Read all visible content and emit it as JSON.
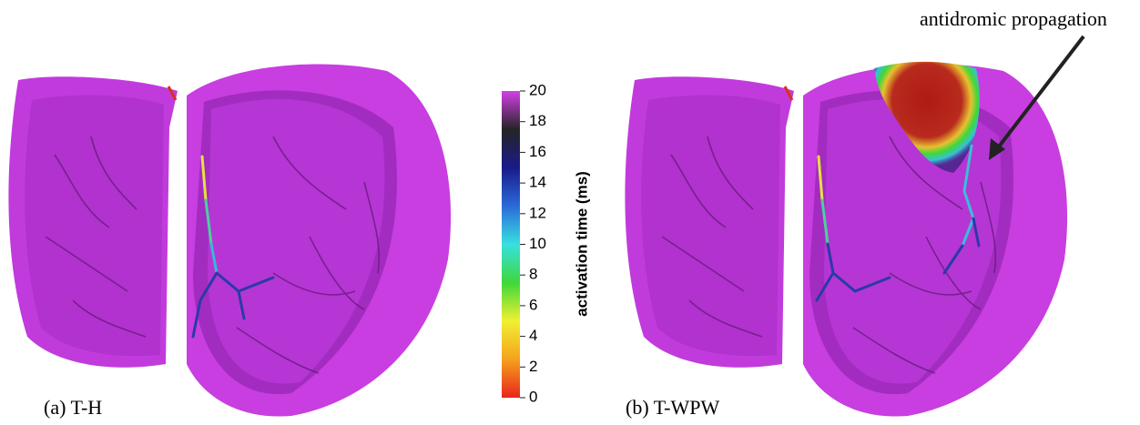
{
  "panels": [
    {
      "caption": "(a) T-H"
    },
    {
      "caption": "(b) T-WPW"
    }
  ],
  "annotation": "antidromic propagation",
  "colorbar": {
    "label": "activation time (ms)",
    "lim": [
      0,
      20
    ],
    "ticks": [
      0,
      2,
      4,
      6,
      8,
      10,
      12,
      14,
      16,
      18,
      20
    ],
    "colors": [
      "#e8241c",
      "#f5a21d",
      "#f0f032",
      "#3ed83a",
      "#38e0e0",
      "#2a6ad8",
      "#1a1a8a",
      "#252525",
      "#d43fe8"
    ]
  }
}
